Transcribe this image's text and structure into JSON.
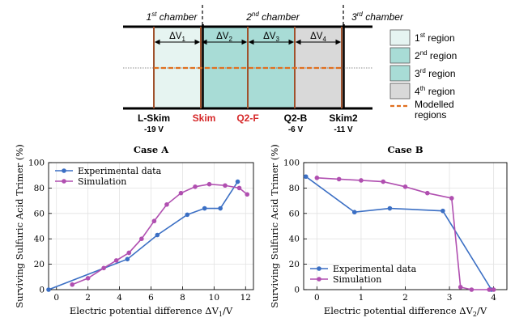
{
  "schematic": {
    "chambers": [
      {
        "label": "1st chamber",
        "main": "1",
        "sup": "st",
        "rest": " chamber"
      },
      {
        "label": "2nd chamber",
        "main": "2",
        "sup": "nd",
        "rest": " chamber"
      },
      {
        "label": "3rd chamber",
        "main": "3",
        "sup": "rd",
        "rest": " chamber"
      }
    ],
    "deltas": [
      {
        "label": "ΔV1",
        "main": "ΔV",
        "sub": "1"
      },
      {
        "label": "ΔV2",
        "main": "ΔV",
        "sub": "2"
      },
      {
        "label": "ΔV3",
        "main": "ΔV",
        "sub": "3"
      },
      {
        "label": "ΔV4",
        "main": "ΔV",
        "sub": "4"
      }
    ],
    "electrodes": [
      {
        "name": "L-Skim",
        "voltage": "-19 V",
        "color": "#000000"
      },
      {
        "name": "Skim",
        "voltage": "",
        "color": "#d62728"
      },
      {
        "name": "Q2-F",
        "voltage": "",
        "color": "#d62728"
      },
      {
        "name": "Q2-B",
        "voltage": "-6 V",
        "color": "#000000"
      },
      {
        "name": "Skim2",
        "voltage": "-11 V",
        "color": "#000000"
      }
    ],
    "region_colors": {
      "r1": "#e6f4f1",
      "r2": "#a8dcd6",
      "r3": "#a8dcd6",
      "r4": "#d9d9d9"
    },
    "legend": [
      {
        "main": "1",
        "sup": "st",
        "rest": " region",
        "color": "#e6f4f1"
      },
      {
        "main": "2",
        "sup": "nd",
        "rest": " region",
        "color": "#a8dcd6"
      },
      {
        "main": "3",
        "sup": "rd",
        "rest": " region",
        "color": "#a8dcd6"
      },
      {
        "main": "4",
        "sup": "th",
        "rest": " region",
        "color": "#d9d9d9"
      }
    ],
    "modelled": {
      "line1": "Modelled",
      "line2": "regions",
      "color": "#e07020"
    }
  },
  "chart_data": [
    {
      "type": "line",
      "title": "Case A",
      "xlabel": "Electric potential difference ΔV1/V",
      "xlabel_main": "Electric potential difference ΔV",
      "xlabel_sub": "1",
      "xlabel_tail": "/V",
      "ylabel": "Surviving Sulfuric Acid Trimer (%)",
      "xlim": [
        -0.5,
        12.5
      ],
      "ylim": [
        0,
        100
      ],
      "xticks": [
        0,
        2,
        4,
        6,
        8,
        10,
        12
      ],
      "yticks": [
        0,
        20,
        40,
        60,
        80,
        100
      ],
      "grid": true,
      "legend_position": "top-left",
      "series": [
        {
          "name": "Experimental data",
          "color": "#3b6fc4",
          "x": [
            -0.5,
            4.5,
            6.4,
            8.3,
            9.4,
            10.4,
            11.5
          ],
          "y": [
            0,
            24,
            43,
            59,
            64,
            64,
            85
          ]
        },
        {
          "name": "Simulation",
          "color": "#b04fb0",
          "x": [
            1.0,
            2.0,
            3.0,
            3.8,
            4.6,
            5.4,
            6.2,
            7.0,
            7.9,
            8.8,
            9.7,
            10.7,
            11.6,
            12.1
          ],
          "y": [
            4,
            9,
            17,
            23,
            29,
            40,
            54,
            67,
            76,
            81,
            83,
            82,
            80,
            75
          ]
        }
      ]
    },
    {
      "type": "line",
      "title": "Case B",
      "xlabel": "Electric potential difference ΔV2/V",
      "xlabel_main": "Electric potential difference ΔV",
      "xlabel_sub": "2",
      "xlabel_tail": "/V",
      "ylabel": "Surviving Sulfuric Acid Trimer (%)",
      "xlim": [
        -0.3,
        4.3
      ],
      "ylim": [
        0,
        100
      ],
      "xticks": [
        0,
        1,
        2,
        3,
        4
      ],
      "yticks": [
        0,
        20,
        40,
        60,
        80,
        100
      ],
      "grid": true,
      "legend_position": "bottom-left",
      "series": [
        {
          "name": "Experimental data",
          "color": "#3b6fc4",
          "x": [
            -0.25,
            0.85,
            1.65,
            2.85,
            3.95
          ],
          "y": [
            89,
            61,
            64,
            62,
            0
          ]
        },
        {
          "name": "Simulation",
          "color": "#b04fb0",
          "x": [
            0.0,
            0.5,
            1.0,
            1.5,
            2.0,
            2.5,
            3.05,
            3.25,
            3.5,
            3.9,
            4.0
          ],
          "y": [
            88,
            87,
            86,
            85,
            81,
            76,
            72,
            2,
            0,
            0,
            0
          ]
        }
      ]
    }
  ]
}
